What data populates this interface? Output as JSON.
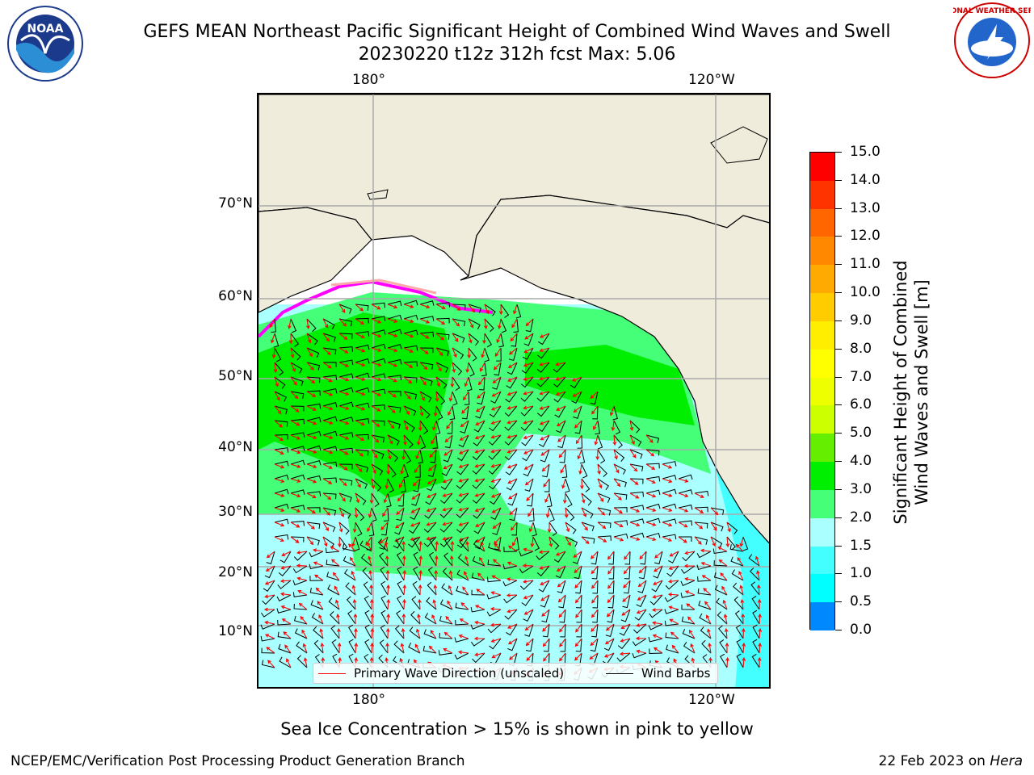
{
  "header": {
    "title_line1": "GEFS MEAN Northeast Pacific Significant Height of Combined Wind Waves and Swell",
    "title_line2": "20230220 t12z 312h fcst   Max: 5.06"
  },
  "logos": {
    "left": {
      "icon": "noaa-logo-icon",
      "text": "NOAA"
    },
    "right": {
      "icon": "nws-logo-icon",
      "text": "NATIONAL WEATHER SERVICE"
    }
  },
  "map": {
    "top_lon_labels": [
      "180°",
      "120°W"
    ],
    "bottom_lon_labels": [
      "180°",
      "120°W"
    ],
    "lat_labels": [
      "70°N",
      "60°N",
      "50°N",
      "40°N",
      "30°N",
      "20°N",
      "10°N"
    ],
    "colors": {
      "land": "#efecdc",
      "wave_arrow": "#ff0000",
      "wind_barb": "#000000",
      "sea_ice": "#ff00ff",
      "grid": "#aaaaaa"
    }
  },
  "legend": {
    "wave_direction": "Primary Wave Direction (unscaled)",
    "wind_barbs": "Wind Barbs"
  },
  "colorbar": {
    "title_line1": "Significant Height of Combined",
    "title_line2": "Wind Waves and Swell [m]",
    "ticks": [
      "15.0",
      "14.0",
      "13.0",
      "12.0",
      "11.0",
      "10.0",
      "9.0",
      "8.0",
      "7.0",
      "6.0",
      "5.0",
      "4.0",
      "3.0",
      "2.0",
      "1.5",
      "1.0",
      "0.5",
      "0.0"
    ],
    "colors": [
      "#ff0000",
      "#ff3300",
      "#ff6600",
      "#ff8800",
      "#ffaa00",
      "#ffcc00",
      "#ffee00",
      "#ffff00",
      "#eeff00",
      "#ccff00",
      "#66ee00",
      "#00ee00",
      "#44ff77",
      "#aaffff",
      "#44ffff",
      "#00ffff",
      "#0088ff",
      "#0044ff",
      "#0000ff"
    ]
  },
  "footer": {
    "subtitle": "Sea Ice Concentration > 15% is shown in pink to yellow",
    "left": "NCEP/EMC/Verification Post Processing Product Generation Branch",
    "right_date": "22 Feb 2023 on",
    "right_host": "Hera"
  }
}
